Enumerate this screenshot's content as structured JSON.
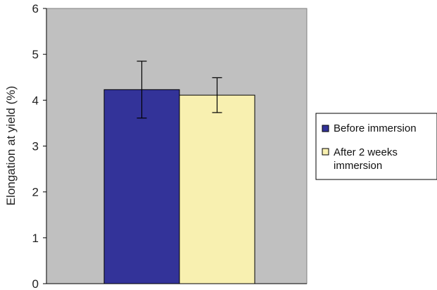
{
  "chart_data": {
    "type": "bar",
    "categories": [
      ""
    ],
    "series": [
      {
        "name": "Before immersion",
        "values": [
          4.23
        ],
        "error": [
          0.62
        ],
        "color": "#333399"
      },
      {
        "name": "After 2 weeks immersion",
        "values": [
          4.11
        ],
        "error": [
          0.38
        ],
        "color": "#f8f0b0"
      }
    ],
    "ylabel": "Elongation at yield (%)",
    "xlabel": "",
    "ylim": [
      0,
      6
    ],
    "yticks": [
      0,
      1,
      2,
      3,
      4,
      5,
      6
    ],
    "grid": false,
    "plot_background": "#c0c0c0",
    "legend_position": "right",
    "legend": {
      "entries": [
        {
          "lines": [
            "Before immersion"
          ],
          "color": "#333399"
        },
        {
          "lines": [
            "After 2 weeks",
            "immersion"
          ],
          "color": "#f8f0b0"
        }
      ]
    }
  }
}
